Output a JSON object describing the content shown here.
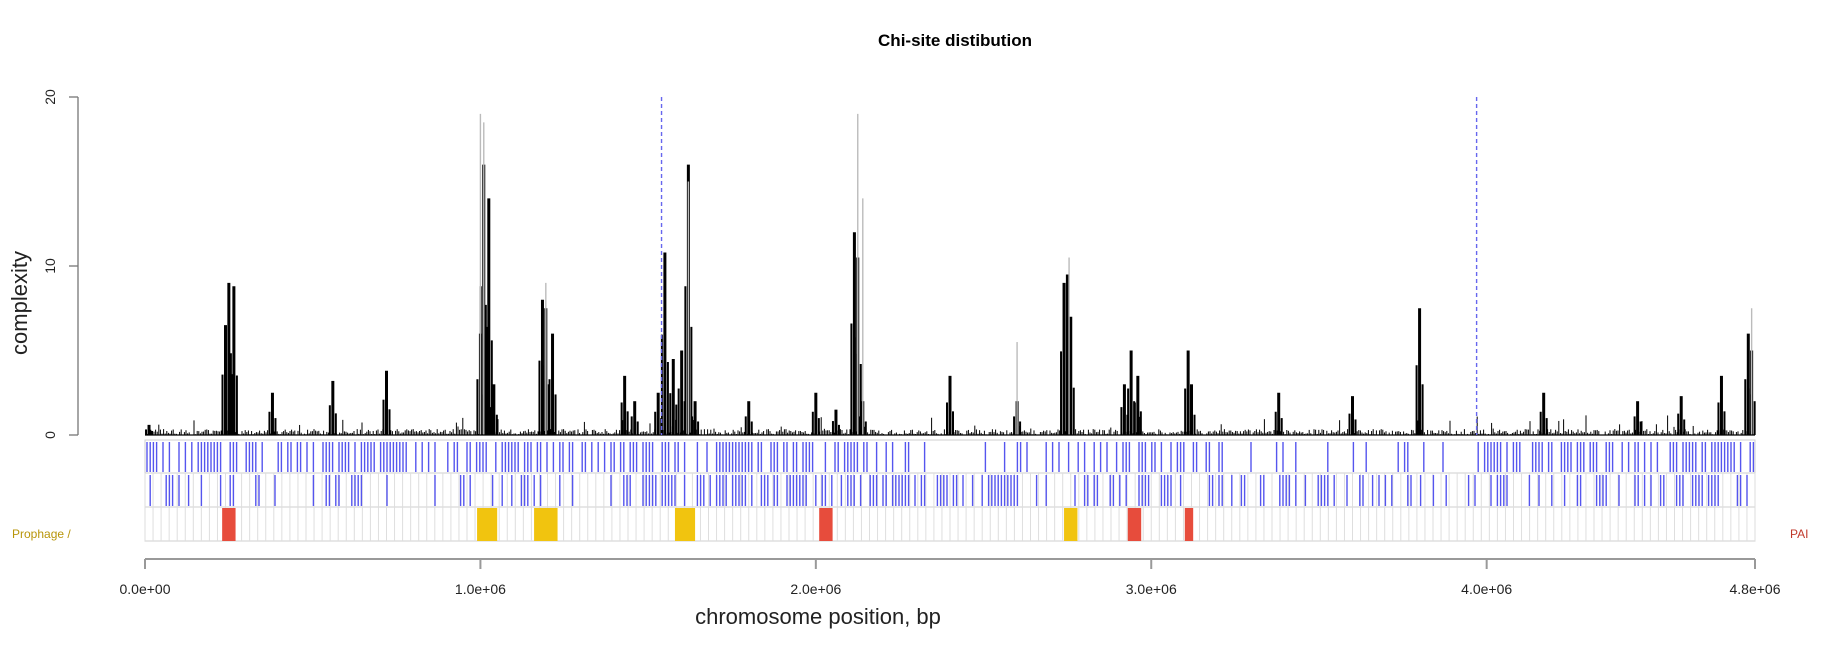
{
  "chart_data": {
    "type": "bar",
    "title": "Chi-site distibution",
    "xlabel": "chromosome position, bp",
    "ylabel": "complexity",
    "xlim": [
      0,
      4800000
    ],
    "ylim": [
      0,
      20
    ],
    "x_ticks": [
      {
        "value": 0,
        "label": "0.0e+00"
      },
      {
        "value": 1000000,
        "label": "1.0e+06"
      },
      {
        "value": 2000000,
        "label": "2.0e+06"
      },
      {
        "value": 3000000,
        "label": "3.0e+06"
      },
      {
        "value": 4000000,
        "label": "4.0e+06"
      },
      {
        "value": 4800000,
        "label": "4.8e+06"
      }
    ],
    "y_ticks": [
      {
        "value": 0,
        "label": "0"
      },
      {
        "value": 10,
        "label": "10"
      },
      {
        "value": 20,
        "label": "20"
      }
    ],
    "series": [
      {
        "color": "#000000",
        "x": [
          12000,
          240000,
          250000,
          265000,
          380000,
          560000,
          720000,
          1000000,
          1010000,
          1025000,
          1040000,
          1185000,
          1195000,
          1215000,
          1430000,
          1460000,
          1530000,
          1550000,
          1575000,
          1600000,
          1620000,
          1640000,
          1800000,
          2000000,
          2060000,
          2115000,
          2125000,
          2140000,
          2400000,
          2600000,
          2740000,
          2750000,
          2760000,
          2920000,
          2940000,
          2960000,
          3110000,
          3120000,
          3380000,
          3600000,
          3800000,
          4170000,
          4450000,
          4580000,
          4700000,
          4780000,
          4790000
        ],
        "values": [
          0.6,
          6.5,
          9.0,
          8.8,
          2.5,
          3.2,
          3.8,
          6.0,
          16.0,
          14.0,
          3.0,
          8.0,
          7.5,
          6.0,
          3.5,
          2.0,
          2.5,
          10.8,
          4.5,
          5.0,
          16.0,
          2.0,
          2.0,
          2.5,
          1.5,
          12.0,
          10.5,
          2.0,
          3.5,
          2.0,
          9.0,
          9.5,
          7.0,
          3.0,
          5.0,
          3.5,
          5.0,
          3.0,
          2.5,
          2.3,
          7.5,
          2.5,
          2.0,
          2.3,
          3.5,
          6.0,
          5.0
        ]
      },
      {
        "color": "#bbbbbb",
        "x": [
          1000000,
          1010000,
          1195000,
          2125000,
          2140000,
          2755000,
          4790000,
          2600000,
          1620000
        ],
        "values": [
          19.0,
          18.5,
          9.0,
          19.0,
          14.0,
          10.5,
          7.5,
          5.5,
          15.0
        ]
      }
    ],
    "reference_lines_x": [
      1540000,
      3970000
    ],
    "annotation_tracks": {
      "upper_color": "#5555ee",
      "regions": [
        {
          "start": 230000,
          "end": 270000,
          "color": "#e74c3c"
        },
        {
          "start": 990000,
          "end": 1050000,
          "color": "#f1c40f"
        },
        {
          "start": 1160000,
          "end": 1230000,
          "color": "#f1c40f"
        },
        {
          "start": 1580000,
          "end": 1640000,
          "color": "#f1c40f"
        },
        {
          "start": 2010000,
          "end": 2050000,
          "color": "#e74c3c"
        },
        {
          "start": 2740000,
          "end": 2780000,
          "color": "#f1c40f"
        },
        {
          "start": 2930000,
          "end": 2970000,
          "color": "#e74c3c"
        },
        {
          "start": 3100000,
          "end": 3125000,
          "color": "#e74c3c"
        }
      ]
    },
    "side_labels": {
      "left": "Prophage /",
      "left_color": "#b8950a",
      "right": "PAI",
      "right_color": "#c0392b"
    }
  }
}
